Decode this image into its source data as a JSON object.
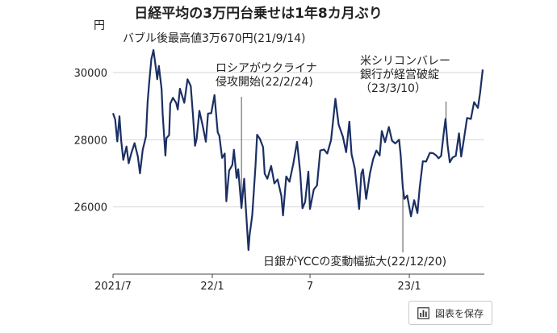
{
  "chart_data": {
    "type": "line",
    "title": "日経平均の3万円台乗せは1年8カ月ぶり",
    "y_unit": "円",
    "xlabel": "",
    "ylabel": "",
    "ylim": [
      24000,
      31200
    ],
    "xlim": [
      "2021-07-01",
      "2023-05-20"
    ],
    "y_ticks": [
      26000,
      28000,
      30000
    ],
    "x_ticks": [
      {
        "date": "2021-07-01",
        "label": "2021/7"
      },
      {
        "date": "2022-01-01",
        "label": "22/1"
      },
      {
        "date": "2022-07-01",
        "label": "7"
      },
      {
        "date": "2023-01-01",
        "label": "23/1"
      }
    ],
    "grid": {
      "horizontal": true,
      "vertical": false
    },
    "line_color": "#1b2f63",
    "series": [
      {
        "name": "",
        "points": [
          [
            "2021-07-01",
            28790
          ],
          [
            "2021-07-05",
            28600
          ],
          [
            "2021-07-09",
            27950
          ],
          [
            "2021-07-13",
            28700
          ],
          [
            "2021-07-16",
            28000
          ],
          [
            "2021-07-20",
            27400
          ],
          [
            "2021-07-26",
            27800
          ],
          [
            "2021-07-30",
            27300
          ],
          [
            "2021-08-04",
            27600
          ],
          [
            "2021-08-10",
            27900
          ],
          [
            "2021-08-16",
            27500
          ],
          [
            "2021-08-20",
            27000
          ],
          [
            "2021-08-25",
            27700
          ],
          [
            "2021-08-31",
            28100
          ],
          [
            "2021-09-03",
            29100
          ],
          [
            "2021-09-06",
            29700
          ],
          [
            "2021-09-10",
            30400
          ],
          [
            "2021-09-14",
            30670
          ],
          [
            "2021-09-17",
            30300
          ],
          [
            "2021-09-21",
            29800
          ],
          [
            "2021-09-24",
            30200
          ],
          [
            "2021-09-29",
            29500
          ],
          [
            "2021-10-01",
            28770
          ],
          [
            "2021-10-06",
            27530
          ],
          [
            "2021-10-08",
            28050
          ],
          [
            "2021-10-13",
            28140
          ],
          [
            "2021-10-15",
            29070
          ],
          [
            "2021-10-20",
            29250
          ],
          [
            "2021-10-26",
            29100
          ],
          [
            "2021-10-29",
            28900
          ],
          [
            "2021-11-02",
            29520
          ],
          [
            "2021-11-10",
            29100
          ],
          [
            "2021-11-16",
            29800
          ],
          [
            "2021-11-22",
            29600
          ],
          [
            "2021-11-26",
            28750
          ],
          [
            "2021-11-30",
            27820
          ],
          [
            "2021-12-03",
            28030
          ],
          [
            "2021-12-08",
            28860
          ],
          [
            "2021-12-14",
            28430
          ],
          [
            "2021-12-20",
            27940
          ],
          [
            "2021-12-24",
            28780
          ],
          [
            "2021-12-30",
            28790
          ],
          [
            "2022-01-05",
            29330
          ],
          [
            "2022-01-11",
            28220
          ],
          [
            "2022-01-14",
            28120
          ],
          [
            "2022-01-19",
            27460
          ],
          [
            "2022-01-24",
            27590
          ],
          [
            "2022-01-27",
            26170
          ],
          [
            "2022-02-01",
            27080
          ],
          [
            "2022-02-07",
            27250
          ],
          [
            "2022-02-10",
            27700
          ],
          [
            "2022-02-15",
            26860
          ],
          [
            "2022-02-18",
            27120
          ],
          [
            "2022-02-24",
            25970
          ],
          [
            "2022-03-01",
            26840
          ],
          [
            "2022-03-04",
            25985
          ],
          [
            "2022-03-09",
            24718
          ],
          [
            "2022-03-11",
            25160
          ],
          [
            "2022-03-16",
            25760
          ],
          [
            "2022-03-22",
            27220
          ],
          [
            "2022-03-25",
            28150
          ],
          [
            "2022-03-30",
            28030
          ],
          [
            "2022-04-05",
            27780
          ],
          [
            "2022-04-08",
            26990
          ],
          [
            "2022-04-13",
            26840
          ],
          [
            "2022-04-20",
            27220
          ],
          [
            "2022-04-26",
            26700
          ],
          [
            "2022-05-02",
            26820
          ],
          [
            "2022-05-09",
            26320
          ],
          [
            "2022-05-12",
            25750
          ],
          [
            "2022-05-18",
            26910
          ],
          [
            "2022-05-24",
            26750
          ],
          [
            "2022-05-31",
            27280
          ],
          [
            "2022-06-07",
            27940
          ],
          [
            "2022-06-13",
            26990
          ],
          [
            "2022-06-17",
            25960
          ],
          [
            "2022-06-22",
            26150
          ],
          [
            "2022-06-28",
            27050
          ],
          [
            "2022-07-01",
            25940
          ],
          [
            "2022-07-08",
            26520
          ],
          [
            "2022-07-14",
            26640
          ],
          [
            "2022-07-20",
            27680
          ],
          [
            "2022-07-27",
            27710
          ],
          [
            "2022-08-02",
            27590
          ],
          [
            "2022-08-09",
            27990
          ],
          [
            "2022-08-17",
            29220
          ],
          [
            "2022-08-23",
            28450
          ],
          [
            "2022-08-31",
            28090
          ],
          [
            "2022-09-06",
            27630
          ],
          [
            "2022-09-12",
            28540
          ],
          [
            "2022-09-16",
            27570
          ],
          [
            "2022-09-22",
            27150
          ],
          [
            "2022-09-30",
            25940
          ],
          [
            "2022-10-04",
            26990
          ],
          [
            "2022-10-07",
            27120
          ],
          [
            "2022-10-13",
            26240
          ],
          [
            "2022-10-20",
            27000
          ],
          [
            "2022-10-26",
            27430
          ],
          [
            "2022-11-01",
            27680
          ],
          [
            "2022-11-07",
            27530
          ],
          [
            "2022-11-11",
            28260
          ],
          [
            "2022-11-17",
            27930
          ],
          [
            "2022-11-24",
            28380
          ],
          [
            "2022-11-30",
            27970
          ],
          [
            "2022-12-06",
            27890
          ],
          [
            "2022-12-13",
            28000
          ],
          [
            "2022-12-16",
            27530
          ],
          [
            "2022-12-20",
            26570
          ],
          [
            "2022-12-23",
            26240
          ],
          [
            "2022-12-28",
            26340
          ],
          [
            "2023-01-04",
            25720
          ],
          [
            "2023-01-10",
            26200
          ],
          [
            "2023-01-16",
            25820
          ],
          [
            "2023-01-20",
            26550
          ],
          [
            "2023-01-26",
            27360
          ],
          [
            "2023-02-01",
            27350
          ],
          [
            "2023-02-08",
            27610
          ],
          [
            "2023-02-14",
            27600
          ],
          [
            "2023-02-20",
            27530
          ],
          [
            "2023-02-24",
            27450
          ],
          [
            "2023-03-01",
            27520
          ],
          [
            "2023-03-06",
            28240
          ],
          [
            "2023-03-09",
            28620
          ],
          [
            "2023-03-13",
            27830
          ],
          [
            "2023-03-17",
            27330
          ],
          [
            "2023-03-22",
            27470
          ],
          [
            "2023-03-28",
            27520
          ],
          [
            "2023-04-03",
            28190
          ],
          [
            "2023-04-07",
            27500
          ],
          [
            "2023-04-12",
            28000
          ],
          [
            "2023-04-18",
            28650
          ],
          [
            "2023-04-25",
            28620
          ],
          [
            "2023-05-01",
            29120
          ],
          [
            "2023-05-08",
            28950
          ],
          [
            "2023-05-12",
            29390
          ],
          [
            "2023-05-17",
            30090
          ]
        ]
      }
    ],
    "annotations": [
      {
        "date": "2021-09-14",
        "y": 30670,
        "lines": [
          "バブル後最高値3万670円(21/9/14)"
        ],
        "leader": false
      },
      {
        "date": "2022-02-24",
        "y": 25970,
        "lines": [
          "ロシアがウクライナ",
          "侵攻開始(22/2/24)"
        ],
        "leader": true
      },
      {
        "date": "2022-12-20",
        "y": 26570,
        "lines": [
          "日銀がYCCの変動幅拡大(22/12/20)"
        ],
        "leader": true
      },
      {
        "date": "2023-03-10",
        "y": 28620,
        "lines": [
          "米シリコンバレー",
          "銀行が経営破綻",
          "（23/3/10）"
        ],
        "leader": true
      }
    ]
  },
  "save_button": {
    "label": "図表を保存",
    "icon": "bar-chart-icon"
  }
}
